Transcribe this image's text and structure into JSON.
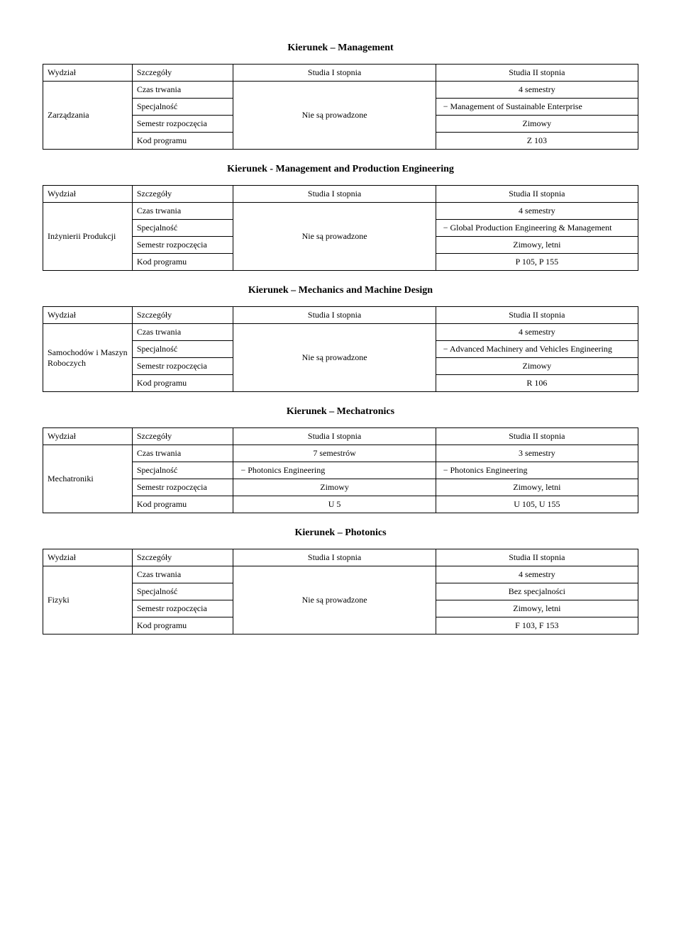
{
  "cols": {
    "Wydzial": "Wydział",
    "Szczegoly": "Szczegóły",
    "S1": "Studia I stopnia",
    "S2": "Studia II stopnia",
    "Czas": "Czas trwania",
    "Spec": "Specjalność",
    "Sem": "Semestr rozpoczęcia",
    "Kod": "Kod programu",
    "Nie": "Nie są prowadzone",
    "s4": "4 semestry",
    "s3": "3 semestry",
    "s7": "7 semestrów",
    "Zim": "Zimowy",
    "ZimL": "Zimowy, letni",
    "Bez": "Bez specjalności"
  },
  "t1": {
    "title": "Kierunek – Management",
    "fac": "Zarządzania",
    "spec": "Management of Sustainable Enterprise",
    "sem": "Zimowy",
    "kod": "Z 103"
  },
  "t2": {
    "title": "Kierunek - Management and Production Engineering",
    "fac": "Inżynierii Produkcji",
    "spec": "Global Production Engineering & Management",
    "sem": "Zimowy, letni",
    "kod": "P 105, P 155"
  },
  "t3": {
    "title": "Kierunek – Mechanics and Machine Design",
    "fac": "Samochodów i Maszyn Roboczych",
    "spec": "Advanced Machinery and Vehicles Engineering",
    "sem": "Zimowy",
    "kod": "R 106"
  },
  "t4": {
    "title": "Kierunek – Mechatronics",
    "fac": "Mechatroniki",
    "spec1": "Photonics Engineering",
    "spec2": "Photonics Engineering",
    "sem1": "Zimowy",
    "sem2": "Zimowy, letni",
    "kod1": "U 5",
    "kod2": "U 105, U 155"
  },
  "t5": {
    "title": "Kierunek – Photonics",
    "fac": "Fizyki",
    "sem": "Zimowy, letni",
    "kod": "F 103, F 153"
  }
}
